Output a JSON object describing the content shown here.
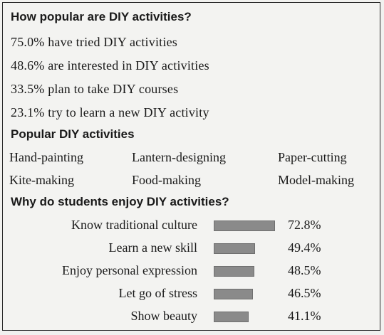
{
  "section1": {
    "heading": "How popular are DIY activities?",
    "lines": [
      "75.0% have tried DIY activities",
      "48.6% are interested in DIY activities",
      "33.5% plan to take DIY courses",
      "23.1% try to learn a new DIY activity"
    ]
  },
  "section2": {
    "heading": "Popular DIY activities",
    "activities": [
      "Hand-painting",
      "Lantern-designing",
      "Paper-cutting",
      "Kite-making",
      "Food-making",
      "Model-making"
    ]
  },
  "section3": {
    "heading": "Why do students enjoy DIY activities?",
    "reasons": [
      {
        "label": "Know traditional culture",
        "value": 72.8,
        "pct": "72.8%"
      },
      {
        "label": "Learn a new skill",
        "value": 49.4,
        "pct": "49.4%"
      },
      {
        "label": "Enjoy personal expression",
        "value": 48.5,
        "pct": "48.5%"
      },
      {
        "label": "Let go of stress",
        "value": 46.5,
        "pct": "46.5%"
      },
      {
        "label": "Show beauty",
        "value": 41.1,
        "pct": "41.1%"
      }
    ]
  }
}
